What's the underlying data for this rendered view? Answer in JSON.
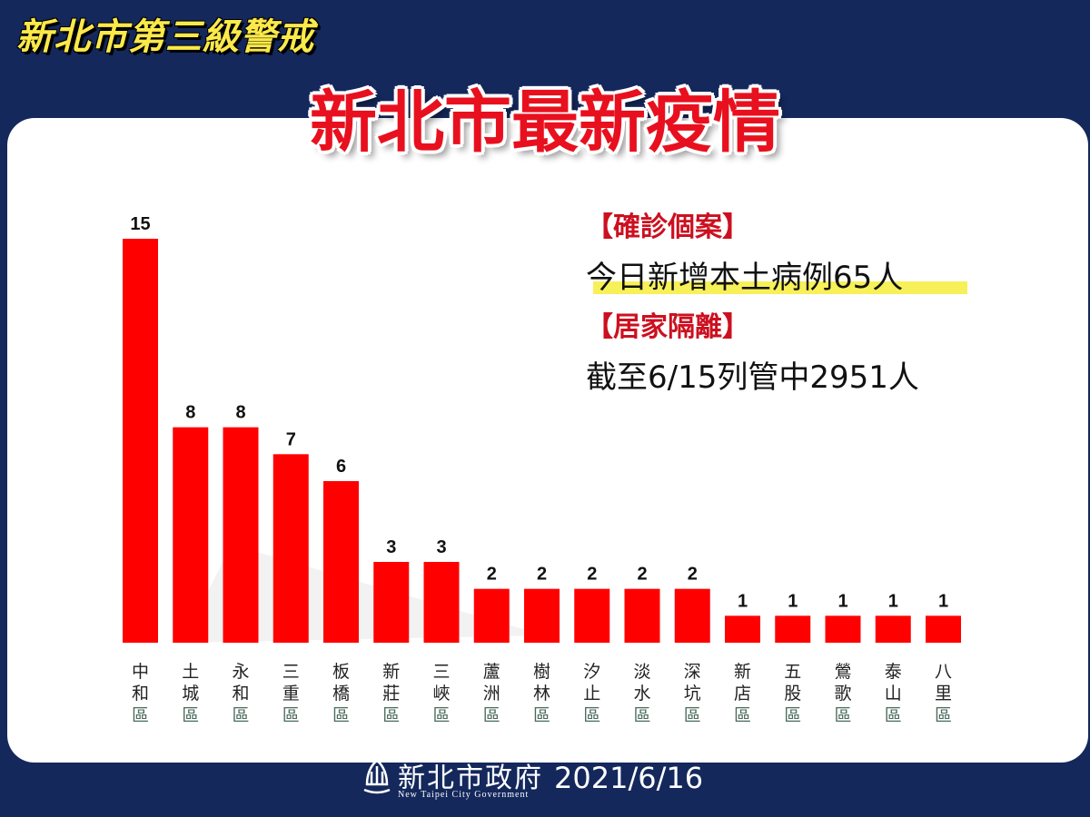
{
  "banner": "新北市第三級警戒",
  "title": "新北市最新疫情",
  "info": {
    "case_head": "【確診個案】",
    "case_text": "今日新增本土病例65人",
    "quarantine_head": "【居家隔離】",
    "quarantine_text": "截至6/15列管中2951人"
  },
  "footer": {
    "gov_name": "新北市政府",
    "gov_name_en": "New Taipei City Government",
    "date": "2021/6/16"
  },
  "colors": {
    "bar": "#ff0000",
    "background": "#14285c",
    "accent": "#fbe94a"
  },
  "chart_data": {
    "type": "bar",
    "title": "",
    "xlabel": "",
    "ylabel": "",
    "categories": [
      "中和區",
      "土城區",
      "永和區",
      "三重區",
      "板橋區",
      "新莊區",
      "三峽區",
      "蘆洲區",
      "樹林區",
      "汐止區",
      "淡水區",
      "深坑區",
      "新店區",
      "五股區",
      "鶯歌區",
      "泰山區",
      "八里區"
    ],
    "values": [
      15,
      8,
      8,
      7,
      6,
      3,
      3,
      2,
      2,
      2,
      2,
      2,
      1,
      1,
      1,
      1,
      1
    ],
    "ylim": [
      0,
      15
    ],
    "grid": false,
    "data_labels": true
  }
}
